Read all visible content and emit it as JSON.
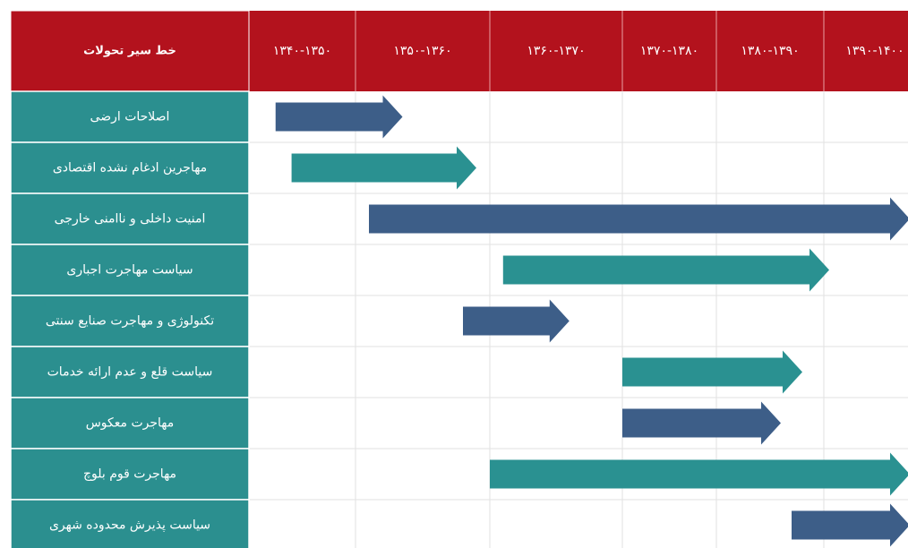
{
  "chart_data": {
    "type": "gantt",
    "header": "خط سیر تحولات",
    "periods": [
      "۱۳۴۰-۱۳۵۰",
      "۱۳۵۰-۱۳۶۰",
      "۱۳۶۰-۱۳۷۰",
      "۱۳۷۰-۱۳۸۰",
      "۱۳۸۰-۱۳۹۰",
      "۱۳۹۰-۱۴۰۰"
    ],
    "xlim": [
      1340,
      1400
    ],
    "grid": true,
    "tasks": [
      {
        "name": "اصلاحات ارضی",
        "start": 1342.5,
        "end": 1353.5,
        "color": "#3d5e88"
      },
      {
        "name": "مهاجرین ادغام نشده اقتصادی",
        "start": 1344,
        "end": 1359,
        "color": "#2a9191"
      },
      {
        "name": "امنیت داخلی و ناامنی خارجی",
        "start": 1351,
        "end": 1398,
        "color": "#3d5e88"
      },
      {
        "name": "سیاست مهاجرت اجباری",
        "start": 1361,
        "end": 1390.5,
        "color": "#2a9191"
      },
      {
        "name": "تکنولوژی و مهاجرت صنایع سنتی",
        "start": 1358,
        "end": 1366,
        "color": "#3d5e88"
      },
      {
        "name": "سیاست قلع و عدم ارائه خدمات",
        "start": 1370,
        "end": 1388,
        "color": "#2a9191"
      },
      {
        "name": "مهاجرت معکوس",
        "start": 1370,
        "end": 1386,
        "color": "#3d5e88"
      },
      {
        "name": "مهاجرت قوم بلوچ",
        "start": 1360,
        "end": 1398,
        "color": "#2a9191"
      },
      {
        "name": "سیاست پذیرش محدوده شهری",
        "start": 1387,
        "end": 1398,
        "color": "#3d5e88"
      }
    ]
  }
}
